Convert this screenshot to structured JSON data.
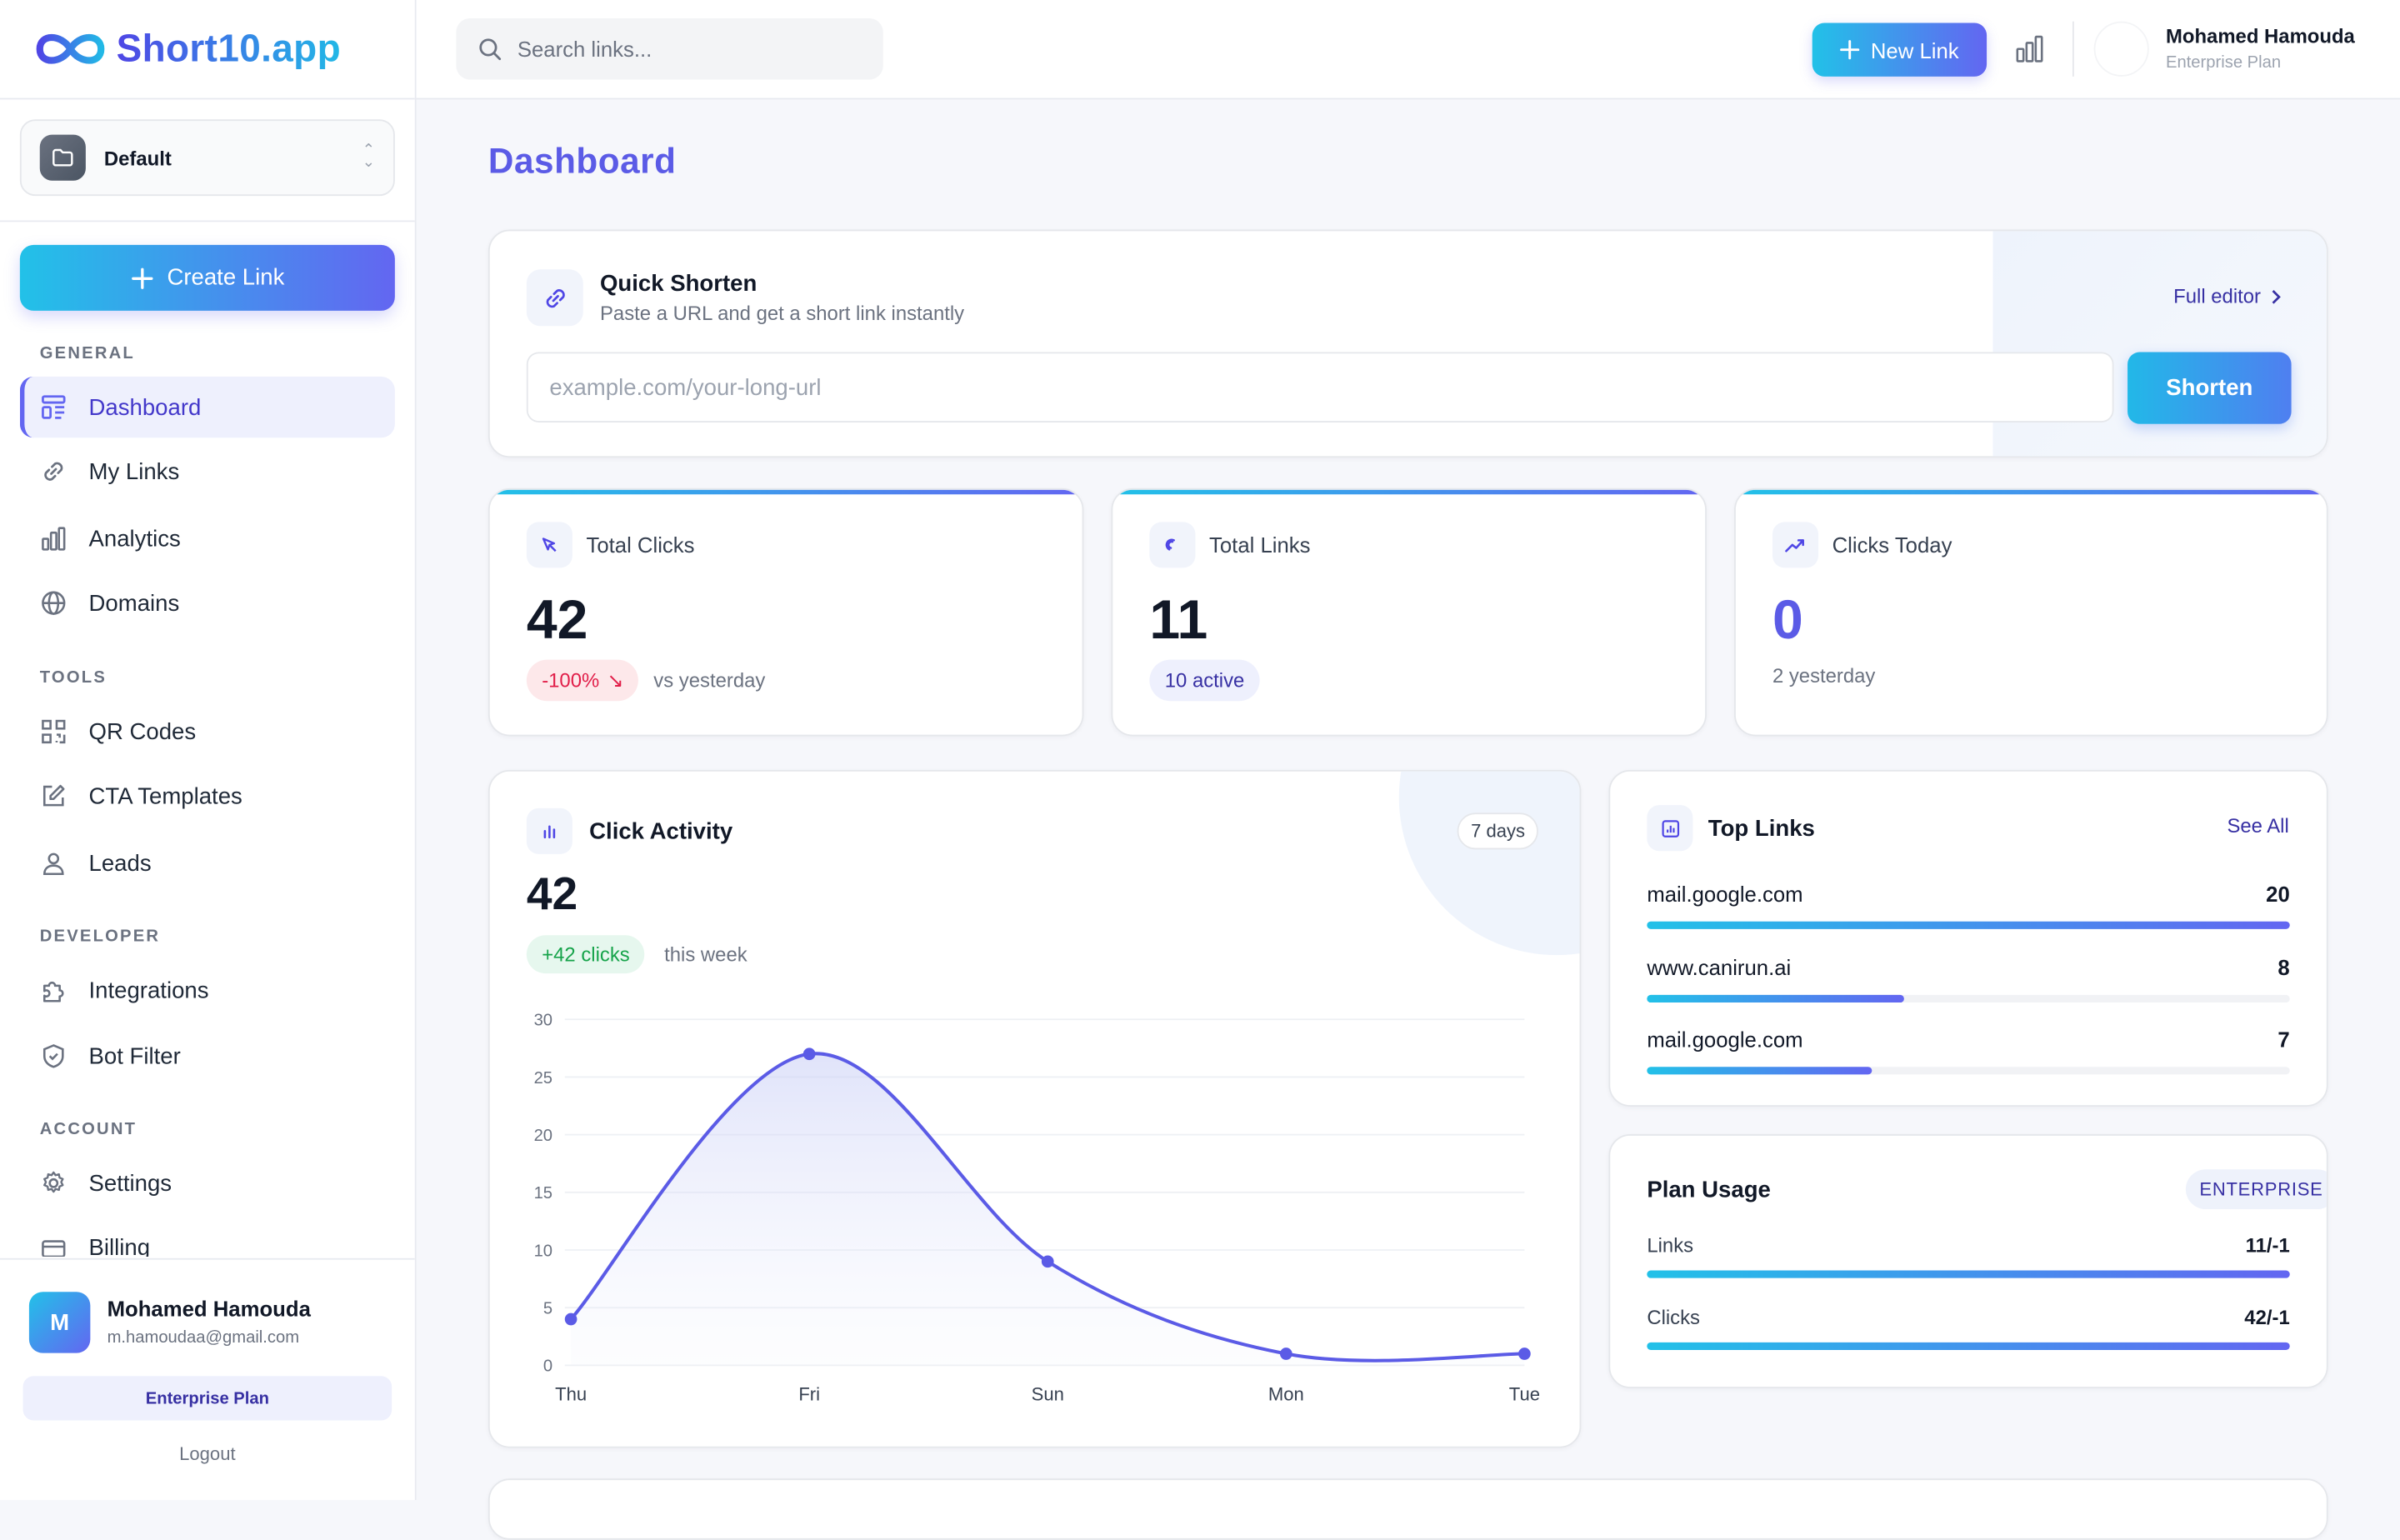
{
  "app": {
    "logo_text": "Short10.app"
  },
  "workspace": {
    "label": "Default"
  },
  "sidebar": {
    "create_label": "Create Link",
    "sections": {
      "general": "GENERAL",
      "tools": "TOOLS",
      "developer": "DEVELOPER",
      "account": "ACCOUNT"
    },
    "items": {
      "dashboard": "Dashboard",
      "my_links": "My Links",
      "analytics": "Analytics",
      "domains": "Domains",
      "qr_codes": "QR Codes",
      "cta_templates": "CTA Templates",
      "leads": "Leads",
      "integrations": "Integrations",
      "bot_filter": "Bot Filter",
      "settings": "Settings",
      "billing": "Billing"
    },
    "active": "dashboard",
    "user": {
      "initial": "M",
      "name": "Mohamed Hamouda",
      "email": "m.hamoudaa@gmail.com",
      "plan": "Enterprise Plan",
      "logout": "Logout"
    }
  },
  "header": {
    "search_placeholder": "Search links...",
    "new_link_label": "New Link",
    "user_name": "Mohamed Hamouda",
    "user_plan": "Enterprise Plan"
  },
  "page": {
    "title": "Dashboard"
  },
  "quick_shorten": {
    "title": "Quick Shorten",
    "subtitle": "Paste a URL and get a short link instantly",
    "full_editor": "Full editor",
    "input_placeholder": "example.com/your-long-url",
    "button": "Shorten"
  },
  "stats": {
    "total_clicks": {
      "label": "Total Clicks",
      "value": "42",
      "badge": "-100%",
      "note": "vs yesterday"
    },
    "total_links": {
      "label": "Total Links",
      "value": "11",
      "badge": "10 active"
    },
    "clicks_today": {
      "label": "Clicks Today",
      "value": "0",
      "note": "2 yesterday"
    }
  },
  "click_activity": {
    "title": "Click Activity",
    "range": "7 days",
    "total": "42",
    "badge": "+42 clicks",
    "note": "this week"
  },
  "chart_data": {
    "type": "area",
    "x": [
      "Thu",
      "Fri",
      "Sun",
      "Mon",
      "Tue"
    ],
    "series": [
      {
        "values": [
          4,
          27,
          9,
          1,
          1
        ]
      }
    ],
    "yticks": [
      0,
      5,
      10,
      15,
      20,
      25,
      30
    ],
    "ylim": [
      0,
      30
    ],
    "grid": true,
    "color": "#5b5be6"
  },
  "top_links": {
    "title": "Top Links",
    "see_all": "See All",
    "items": [
      {
        "domain": "mail.google.com",
        "clicks": "20",
        "fraction": 1.0
      },
      {
        "domain": "www.canirun.ai",
        "clicks": "8",
        "fraction": 0.4
      },
      {
        "domain": "mail.google.com",
        "clicks": "7",
        "fraction": 0.35
      }
    ]
  },
  "plan_usage": {
    "title": "Plan Usage",
    "tier": "ENTERPRISE",
    "rows": [
      {
        "label": "Links",
        "value": "11/-1",
        "fraction": 1.0
      },
      {
        "label": "Clicks",
        "value": "42/-1",
        "fraction": 1.0
      }
    ]
  },
  "colors": {
    "accent": "#6366f1",
    "accent_cyan": "#22c1e8",
    "danger": "#e11d48",
    "success": "#16a34a"
  }
}
